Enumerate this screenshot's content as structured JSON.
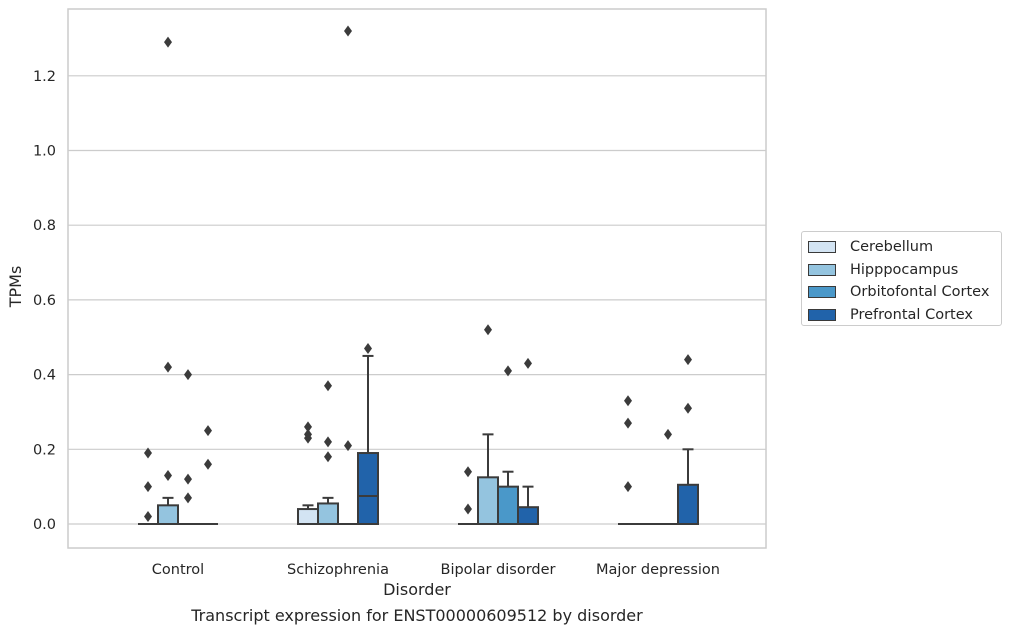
{
  "chart_data": {
    "type": "boxplot",
    "xlabel": "Disorder",
    "ylabel": "TPMs",
    "caption": "Transcript expression for ENST00000609512 by disorder",
    "ylim": [
      -0.065,
      1.38
    ],
    "yticks": [
      0.0,
      0.2,
      0.4,
      0.6,
      0.8,
      1.0,
      1.2
    ],
    "ytick_labels": [
      "0.0",
      "0.2",
      "0.4",
      "0.6",
      "0.8",
      "1.0",
      "1.2"
    ],
    "grid": "horizontal",
    "legend_position": "right",
    "categories": [
      "Control",
      "Schizophrenia",
      "Bipolar disorder",
      "Major depression"
    ],
    "series": [
      {
        "name": "Cerebellum",
        "color": "#d3e4f3",
        "boxes": [
          {
            "q1": 0,
            "median": 0,
            "q3": 0,
            "whisker_low": 0,
            "whisker_high": 0,
            "outliers": [
              0.02,
              0.1,
              0.19
            ]
          },
          {
            "q1": 0,
            "median": 0,
            "q3": 0.04,
            "whisker_low": 0,
            "whisker_high": 0.05,
            "outliers": [
              0.23,
              0.24,
              0.26
            ]
          },
          {
            "q1": 0,
            "median": 0,
            "q3": 0,
            "whisker_low": 0,
            "whisker_high": 0,
            "outliers": [
              0.04,
              0.14
            ]
          },
          {
            "q1": 0,
            "median": 0,
            "q3": 0,
            "whisker_low": 0,
            "whisker_high": 0,
            "outliers": [
              0.1,
              0.27,
              0.33
            ]
          }
        ]
      },
      {
        "name": "Hipppocampus",
        "color": "#94c4df",
        "boxes": [
          {
            "q1": 0,
            "median": 0,
            "q3": 0.05,
            "whisker_low": 0,
            "whisker_high": 0.07,
            "outliers": [
              0.13,
              0.42,
              1.29
            ]
          },
          {
            "q1": 0,
            "median": 0,
            "q3": 0.055,
            "whisker_low": 0,
            "whisker_high": 0.07,
            "outliers": [
              0.18,
              0.22,
              0.37
            ]
          },
          {
            "q1": 0,
            "median": 0,
            "q3": 0.125,
            "whisker_low": 0,
            "whisker_high": 0.24,
            "outliers": [
              0.52
            ]
          },
          {
            "q1": 0,
            "median": 0,
            "q3": 0,
            "whisker_low": 0,
            "whisker_high": 0,
            "outliers": []
          }
        ]
      },
      {
        "name": "Orbitofontal Cortex",
        "color": "#4a98c9",
        "boxes": [
          {
            "q1": 0,
            "median": 0,
            "q3": 0,
            "whisker_low": 0,
            "whisker_high": 0,
            "outliers": [
              0.07,
              0.12,
              0.4
            ]
          },
          {
            "q1": 0,
            "median": 0,
            "q3": 0,
            "whisker_low": 0,
            "whisker_high": 0,
            "outliers": [
              0.21,
              1.32
            ]
          },
          {
            "q1": 0,
            "median": 0,
            "q3": 0.1,
            "whisker_low": 0,
            "whisker_high": 0.14,
            "outliers": [
              0.41
            ]
          },
          {
            "q1": 0,
            "median": 0,
            "q3": 0,
            "whisker_low": 0,
            "whisker_high": 0,
            "outliers": [
              0.24
            ]
          }
        ]
      },
      {
        "name": "Prefrontal Cortex",
        "color": "#2163aa",
        "boxes": [
          {
            "q1": 0,
            "median": 0,
            "q3": 0,
            "whisker_low": 0,
            "whisker_high": 0,
            "outliers": [
              0.16,
              0.25
            ]
          },
          {
            "q1": 0,
            "median": 0.075,
            "q3": 0.19,
            "whisker_low": 0,
            "whisker_high": 0.45,
            "outliers": [
              0.47
            ]
          },
          {
            "q1": 0,
            "median": 0,
            "q3": 0.045,
            "whisker_low": 0,
            "whisker_high": 0.1,
            "outliers": [
              0.43
            ]
          },
          {
            "q1": 0,
            "median": 0,
            "q3": 0.105,
            "whisker_low": 0,
            "whisker_high": 0.2,
            "outliers": [
              0.31,
              0.44
            ]
          }
        ]
      }
    ]
  }
}
